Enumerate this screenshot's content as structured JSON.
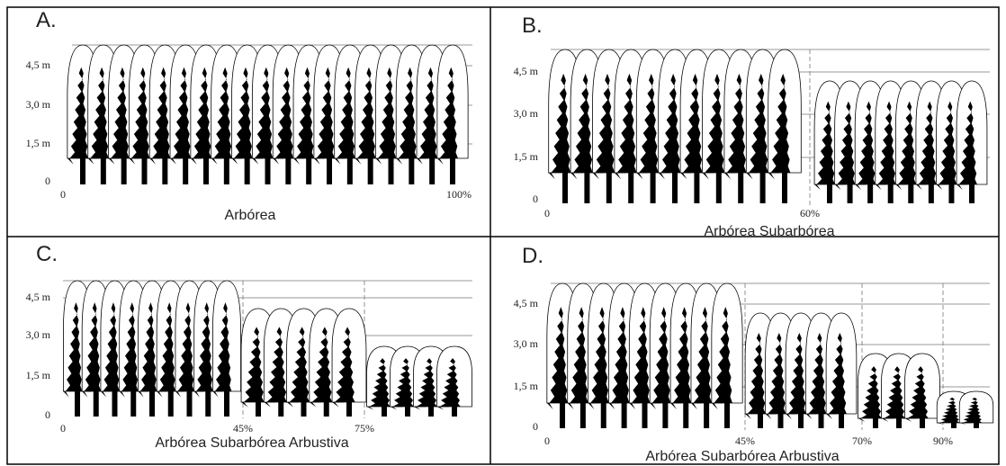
{
  "panels": [
    {
      "letter": "A.",
      "y_labels": [
        "4,5 m",
        "3,0 m",
        "1,5 m",
        "0"
      ],
      "x_labels": [
        "0",
        "100%"
      ],
      "caption": "Arbórea"
    },
    {
      "letter": "B.",
      "y_labels": [
        "4,5 m",
        "3,0 m",
        "1,5 m",
        "0"
      ],
      "x_labels": [
        "0",
        "60%"
      ],
      "caption": "Arbórea Subarbórea"
    },
    {
      "letter": "C.",
      "y_labels": [
        "4,5 m",
        "3,0 m",
        "1,5 m",
        "0"
      ],
      "x_labels": [
        "0",
        "45%",
        "75%"
      ],
      "caption": "Arbórea Subarbórea Arbustiva"
    },
    {
      "letter": "D.",
      "y_labels": [
        "4,5 m",
        "3,0 m",
        "1,5 m",
        "0"
      ],
      "x_labels": [
        "0",
        "45%",
        "70%",
        "90%"
      ],
      "caption": "Arbórea Subarbórea Arbustiva"
    }
  ]
}
